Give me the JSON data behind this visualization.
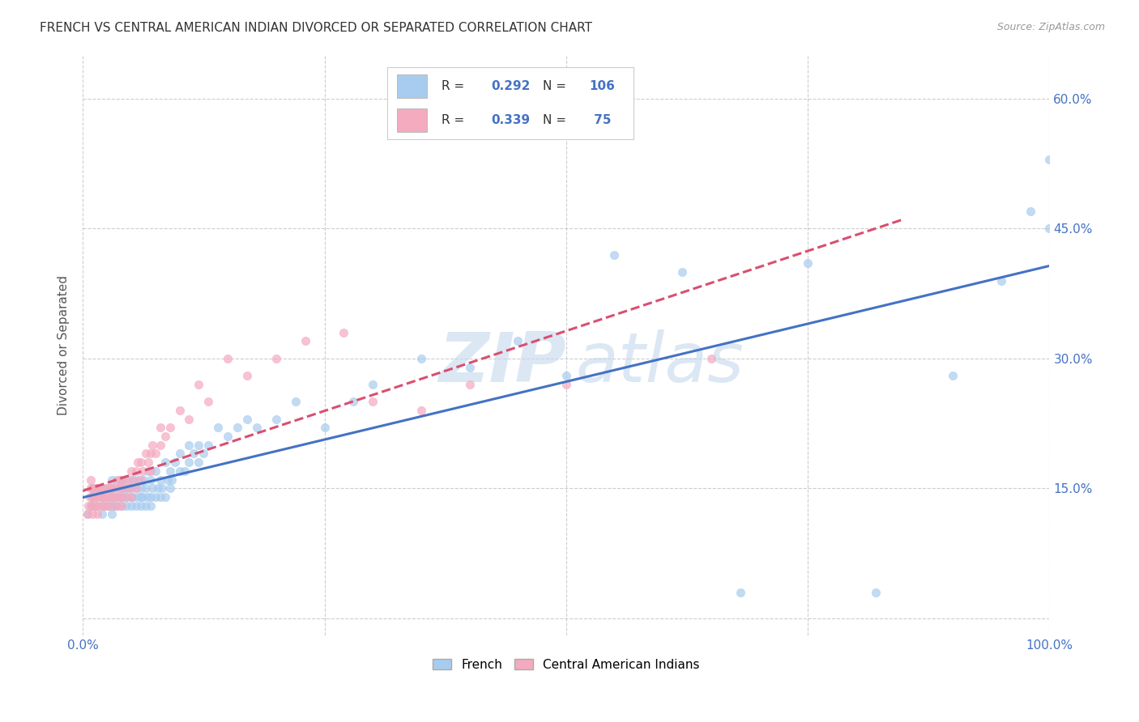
{
  "title": "FRENCH VS CENTRAL AMERICAN INDIAN DIVORCED OR SEPARATED CORRELATION CHART",
  "source": "Source: ZipAtlas.com",
  "ylabel": "Divorced or Separated",
  "watermark_zip": "ZIP",
  "watermark_atlas": "atlas",
  "french_R": 0.292,
  "french_N": 106,
  "central_R": 0.339,
  "central_N": 75,
  "xlim": [
    0.0,
    1.0
  ],
  "ylim": [
    -0.02,
    0.65
  ],
  "yticks": [
    0.0,
    0.15,
    0.3,
    0.45,
    0.6
  ],
  "ytick_labels": [
    "",
    "15.0%",
    "30.0%",
    "45.0%",
    "60.0%"
  ],
  "french_color": "#A8CCEF",
  "central_color": "#F4AABF",
  "french_line_color": "#4472C4",
  "central_line_color": "#D94F70",
  "title_color": "#333333",
  "axis_color": "#4472C4",
  "background_color": "#FFFFFF",
  "grid_color": "#C8C8C8",
  "french_scatter_x": [
    0.005,
    0.008,
    0.01,
    0.01,
    0.01,
    0.012,
    0.015,
    0.015,
    0.018,
    0.02,
    0.02,
    0.02,
    0.022,
    0.025,
    0.025,
    0.027,
    0.028,
    0.03,
    0.03,
    0.03,
    0.03,
    0.032,
    0.033,
    0.035,
    0.035,
    0.037,
    0.038,
    0.04,
    0.04,
    0.04,
    0.04,
    0.042,
    0.043,
    0.045,
    0.045,
    0.047,
    0.048,
    0.05,
    0.05,
    0.05,
    0.052,
    0.053,
    0.055,
    0.055,
    0.057,
    0.058,
    0.06,
    0.06,
    0.06,
    0.062,
    0.063,
    0.065,
    0.065,
    0.067,
    0.068,
    0.07,
    0.07,
    0.07,
    0.072,
    0.075,
    0.075,
    0.078,
    0.08,
    0.08,
    0.082,
    0.085,
    0.085,
    0.088,
    0.09,
    0.09,
    0.092,
    0.095,
    0.1,
    0.1,
    0.105,
    0.11,
    0.11,
    0.115,
    0.12,
    0.12,
    0.125,
    0.13,
    0.14,
    0.15,
    0.16,
    0.17,
    0.18,
    0.2,
    0.22,
    0.25,
    0.28,
    0.3,
    0.35,
    0.4,
    0.45,
    0.5,
    0.55,
    0.62,
    0.68,
    0.75,
    0.82,
    0.9,
    0.95,
    0.98,
    1.0,
    1.0
  ],
  "french_scatter_y": [
    0.12,
    0.13,
    0.14,
    0.15,
    0.13,
    0.14,
    0.13,
    0.15,
    0.14,
    0.12,
    0.13,
    0.15,
    0.14,
    0.13,
    0.15,
    0.14,
    0.13,
    0.12,
    0.14,
    0.15,
    0.16,
    0.13,
    0.14,
    0.13,
    0.15,
    0.14,
    0.16,
    0.13,
    0.14,
    0.15,
    0.16,
    0.14,
    0.15,
    0.13,
    0.14,
    0.15,
    0.16,
    0.13,
    0.14,
    0.15,
    0.14,
    0.16,
    0.13,
    0.15,
    0.14,
    0.16,
    0.13,
    0.14,
    0.15,
    0.14,
    0.16,
    0.13,
    0.15,
    0.14,
    0.17,
    0.13,
    0.14,
    0.16,
    0.15,
    0.14,
    0.17,
    0.15,
    0.14,
    0.16,
    0.15,
    0.14,
    0.18,
    0.16,
    0.15,
    0.17,
    0.16,
    0.18,
    0.17,
    0.19,
    0.17,
    0.18,
    0.2,
    0.19,
    0.18,
    0.2,
    0.19,
    0.2,
    0.22,
    0.21,
    0.22,
    0.23,
    0.22,
    0.23,
    0.25,
    0.22,
    0.25,
    0.27,
    0.3,
    0.29,
    0.32,
    0.28,
    0.42,
    0.4,
    0.03,
    0.41,
    0.03,
    0.28,
    0.39,
    0.47,
    0.53,
    0.45
  ],
  "central_scatter_x": [
    0.005,
    0.006,
    0.007,
    0.008,
    0.008,
    0.009,
    0.01,
    0.01,
    0.01,
    0.012,
    0.012,
    0.013,
    0.015,
    0.015,
    0.015,
    0.017,
    0.018,
    0.02,
    0.02,
    0.02,
    0.022,
    0.023,
    0.025,
    0.025,
    0.027,
    0.028,
    0.03,
    0.03,
    0.03,
    0.032,
    0.033,
    0.035,
    0.035,
    0.037,
    0.038,
    0.04,
    0.04,
    0.04,
    0.042,
    0.045,
    0.045,
    0.048,
    0.05,
    0.05,
    0.052,
    0.055,
    0.055,
    0.057,
    0.06,
    0.06,
    0.062,
    0.065,
    0.068,
    0.07,
    0.07,
    0.072,
    0.075,
    0.08,
    0.08,
    0.085,
    0.09,
    0.1,
    0.11,
    0.12,
    0.13,
    0.15,
    0.17,
    0.2,
    0.23,
    0.27,
    0.3,
    0.35,
    0.4,
    0.5,
    0.65
  ],
  "central_scatter_y": [
    0.12,
    0.13,
    0.14,
    0.15,
    0.16,
    0.13,
    0.12,
    0.14,
    0.15,
    0.13,
    0.14,
    0.15,
    0.12,
    0.13,
    0.14,
    0.15,
    0.14,
    0.13,
    0.14,
    0.15,
    0.13,
    0.14,
    0.13,
    0.15,
    0.14,
    0.15,
    0.13,
    0.14,
    0.15,
    0.14,
    0.15,
    0.16,
    0.13,
    0.14,
    0.15,
    0.13,
    0.14,
    0.16,
    0.15,
    0.14,
    0.16,
    0.15,
    0.14,
    0.17,
    0.16,
    0.15,
    0.17,
    0.18,
    0.16,
    0.18,
    0.17,
    0.19,
    0.18,
    0.17,
    0.19,
    0.2,
    0.19,
    0.2,
    0.22,
    0.21,
    0.22,
    0.24,
    0.23,
    0.27,
    0.25,
    0.3,
    0.28,
    0.3,
    0.32,
    0.33,
    0.25,
    0.24,
    0.27,
    0.27,
    0.3
  ]
}
